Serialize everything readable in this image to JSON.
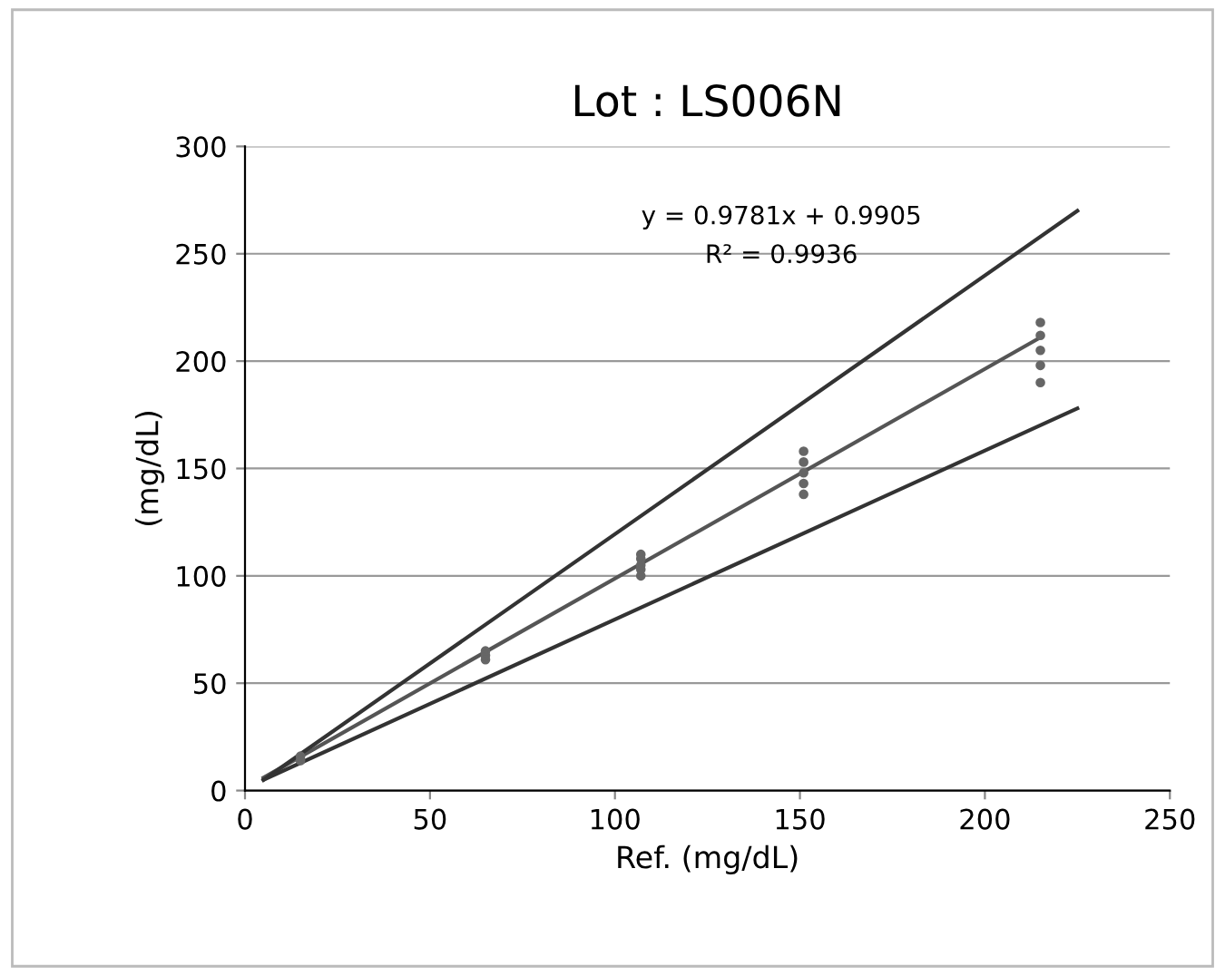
{
  "chart_data": {
    "type": "scatter",
    "title": "Lot : LS006N",
    "xlabel": "Ref. (mg/dL)",
    "ylabel": "(mg/dL)",
    "xlim": [
      0,
      250
    ],
    "ylim": [
      0,
      300
    ],
    "xticks": [
      0,
      50,
      100,
      150,
      200,
      250
    ],
    "yticks": [
      0,
      50,
      100,
      150,
      200,
      250,
      300
    ],
    "grid": "y",
    "annotations": [
      "y = 0.9781x + 0.9905",
      "R² = 0.9936"
    ],
    "series": [
      {
        "marker": "circle",
        "color": "#666666",
        "x": [
          15,
          15,
          65,
          65,
          65,
          107,
          107,
          107,
          107,
          107,
          151,
          151,
          151,
          151,
          151,
          215,
          215,
          215,
          215,
          215
        ],
        "values": [
          14,
          16,
          61,
          63,
          65,
          100,
          103,
          105,
          108,
          110,
          138,
          143,
          148,
          153,
          158,
          190,
          198,
          205,
          212,
          218
        ]
      },
      {
        "type": "line",
        "color": "#555555",
        "x": [
          5,
          215
        ],
        "values": [
          6,
          211
        ]
      },
      {
        "type": "line",
        "color": "#333333",
        "x": [
          5,
          225
        ],
        "values": [
          5,
          270
        ]
      },
      {
        "type": "line",
        "color": "#333333",
        "x": [
          5,
          225
        ],
        "values": [
          5,
          178
        ]
      }
    ]
  }
}
